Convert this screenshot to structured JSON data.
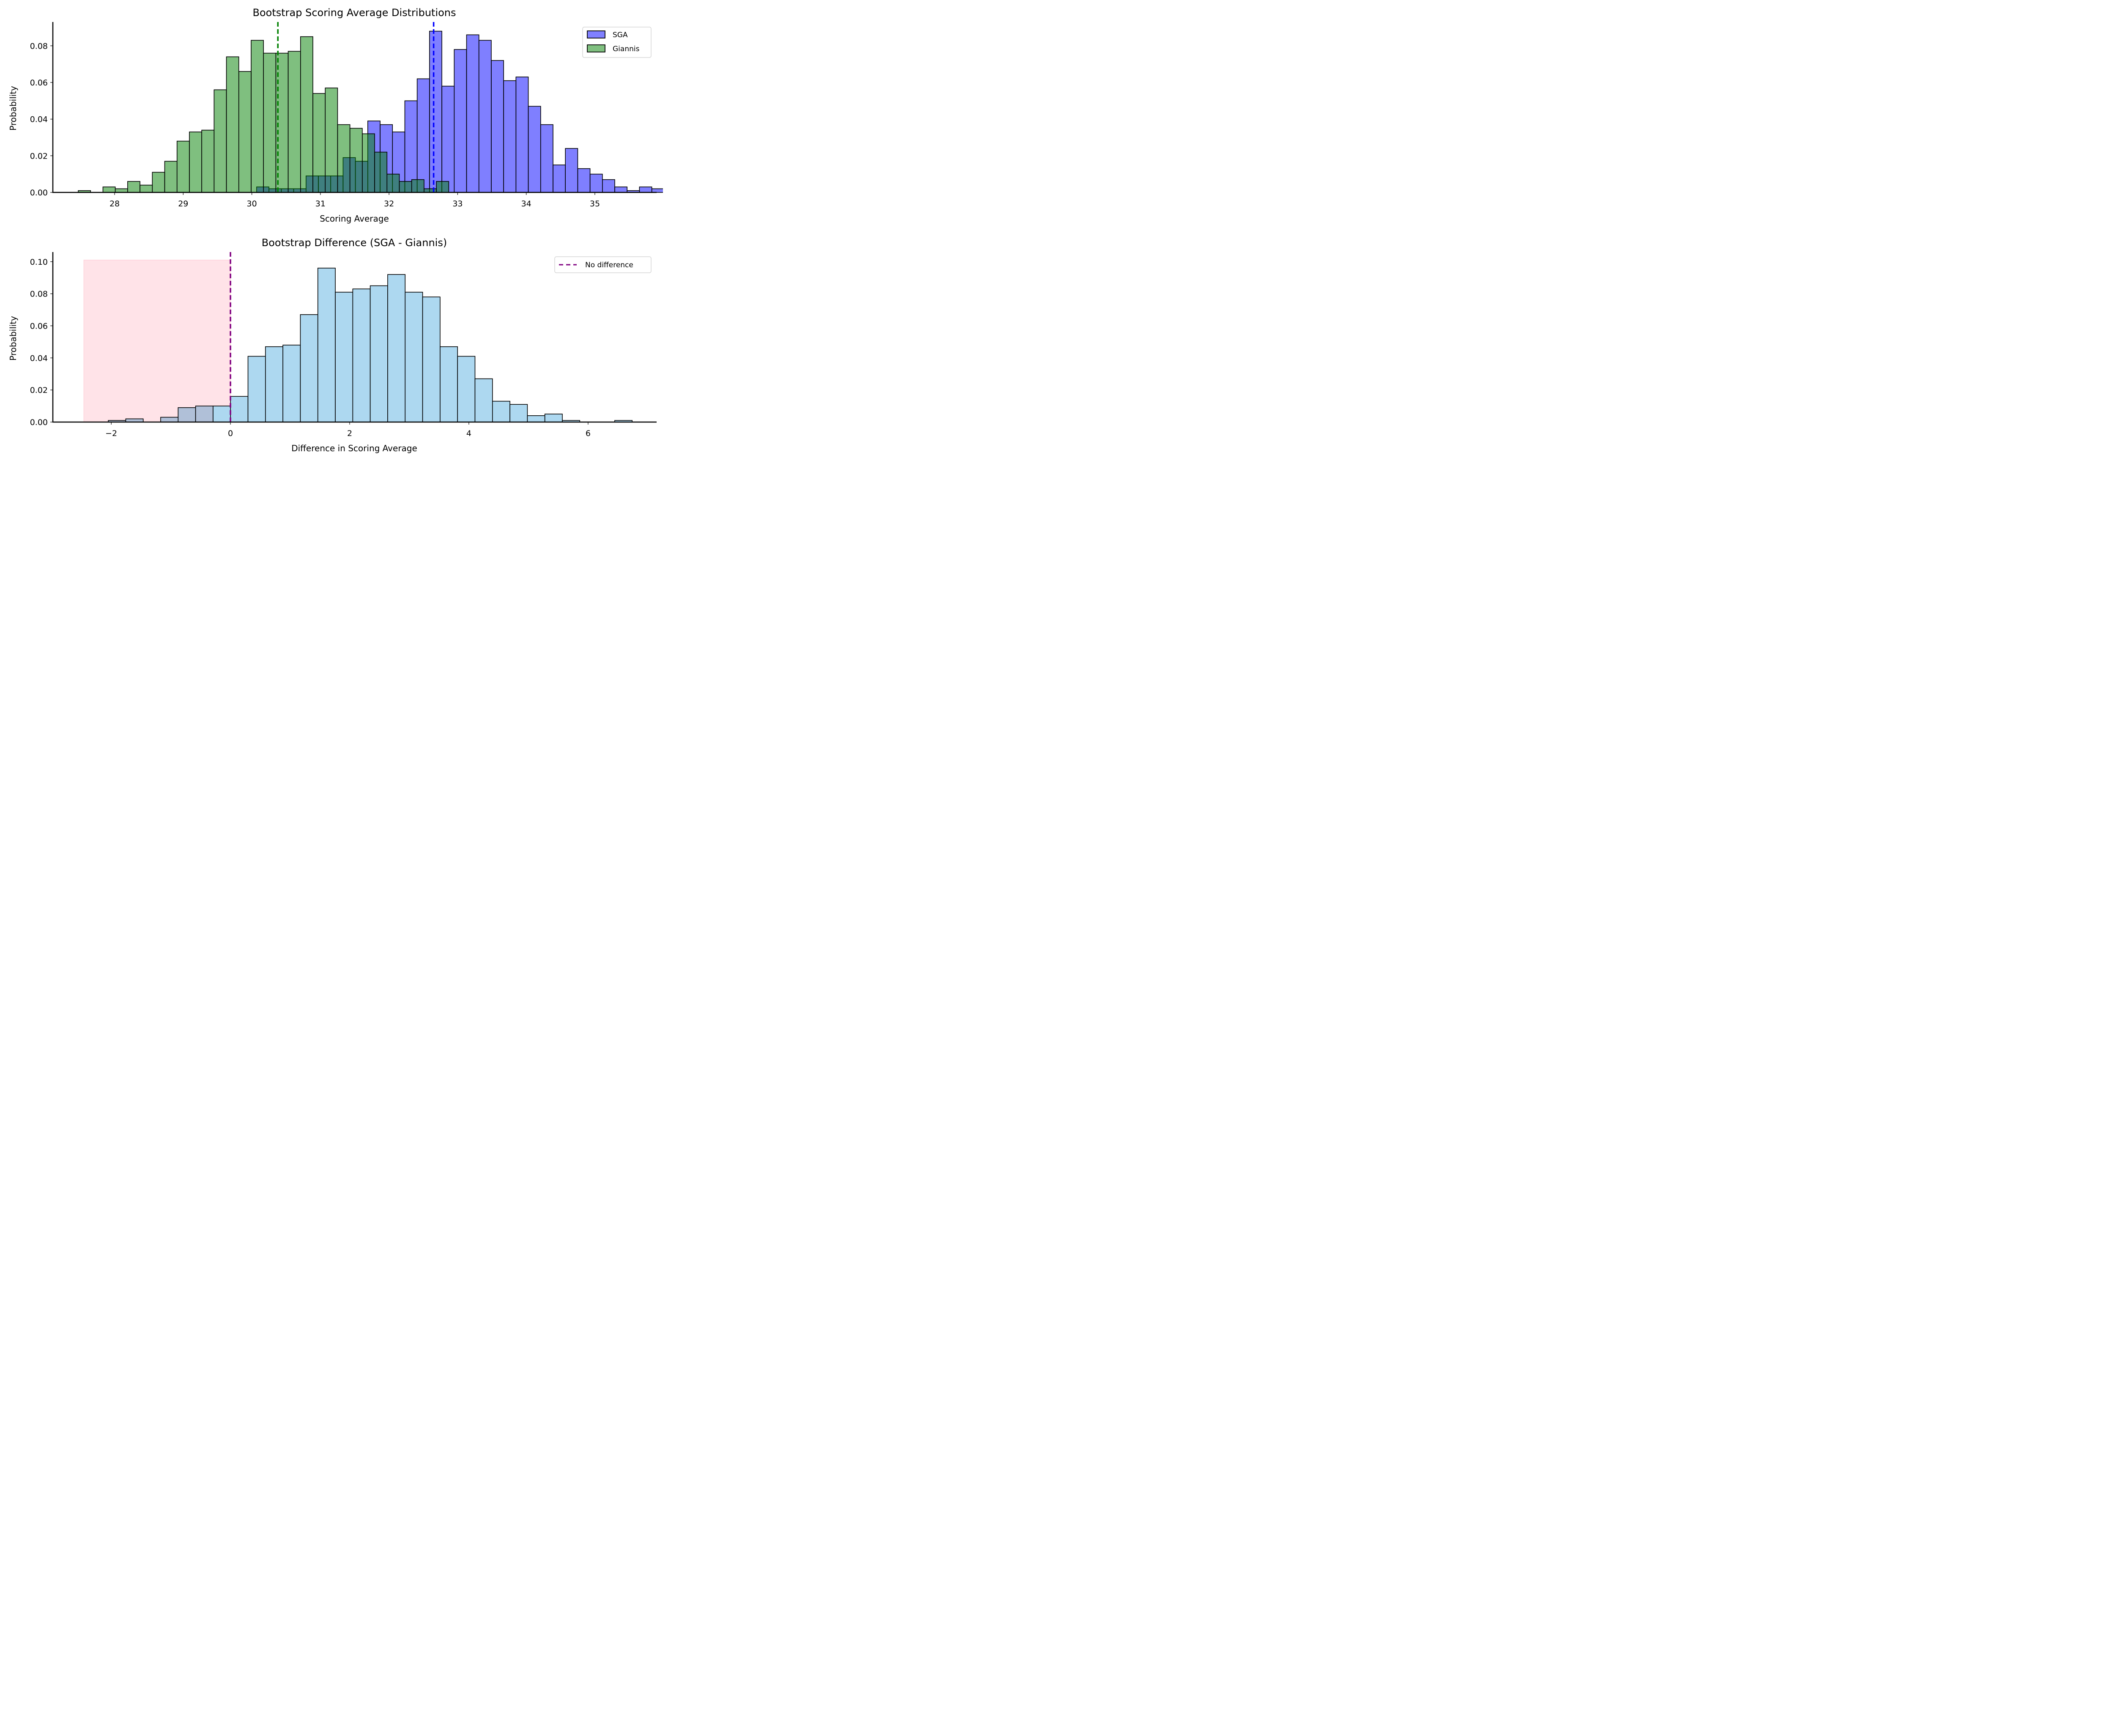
{
  "chart_data": [
    {
      "type": "bar",
      "subtype": "histogram",
      "title": "Bootstrap Scoring Average Distributions",
      "xlabel": "Scoring Average",
      "ylabel": "Probability",
      "xlim": [
        27.1,
        35.9
      ],
      "ylim": [
        0,
        0.093
      ],
      "xticks": [
        28,
        29,
        30,
        31,
        32,
        33,
        34,
        35
      ],
      "xtick_labels": [
        "28",
        "29",
        "30",
        "31",
        "32",
        "33",
        "34",
        "35"
      ],
      "yticks": [
        0.0,
        0.02,
        0.04,
        0.06,
        0.08
      ],
      "ytick_labels": [
        "0.00",
        "0.02",
        "0.04",
        "0.06",
        "0.08"
      ],
      "grid": false,
      "legend": {
        "placement": "top-right",
        "entries": [
          "SGA",
          "Giannis"
        ]
      },
      "series": [
        {
          "name": "SGA",
          "color": "#8080ff",
          "bin_start": 30.07,
          "bin_width": 0.18,
          "values": [
            0.003,
            0.002,
            0.002,
            0.002,
            0.009,
            0.009,
            0.009,
            0.019,
            0.017,
            0.039,
            0.037,
            0.033,
            0.05,
            0.062,
            0.088,
            0.058,
            0.078,
            0.086,
            0.083,
            0.072,
            0.061,
            0.063,
            0.047,
            0.037,
            0.015,
            0.024,
            0.013,
            0.01,
            0.007,
            0.003,
            0.001,
            0.003,
            0.002
          ],
          "mean": 32.65
        },
        {
          "name": "Giannis",
          "color": "#80c080",
          "bin_start": 27.47,
          "bin_width": 0.18,
          "values": [
            0.001,
            0.0,
            0.003,
            0.002,
            0.006,
            0.004,
            0.011,
            0.017,
            0.028,
            0.033,
            0.034,
            0.056,
            0.074,
            0.066,
            0.083,
            0.076,
            0.076,
            0.077,
            0.085,
            0.054,
            0.057,
            0.037,
            0.035,
            0.032,
            0.022,
            0.01,
            0.006,
            0.007,
            0.002,
            0.006
          ],
          "mean": 30.38
        }
      ],
      "mean_lines": [
        {
          "series": "Giannis",
          "x": 30.38,
          "color": "#008000",
          "style": "dashed"
        },
        {
          "series": "SGA",
          "x": 32.65,
          "color": "#0000ff",
          "style": "dashed"
        }
      ]
    },
    {
      "type": "bar",
      "subtype": "histogram",
      "title": "Bootstrap Difference (SGA - Giannis)",
      "xlabel": "Difference in Scoring Average",
      "ylabel": "Probability",
      "xlim": [
        -2.98,
        7.15
      ],
      "ylim": [
        0,
        0.106
      ],
      "xticks": [
        -2,
        0,
        2,
        4,
        6
      ],
      "xtick_labels": [
        "−2",
        "0",
        "2",
        "4",
        "6"
      ],
      "yticks": [
        0.0,
        0.02,
        0.04,
        0.06,
        0.08,
        0.1
      ],
      "ytick_labels": [
        "0.00",
        "0.02",
        "0.04",
        "0.06",
        "0.08",
        "0.10"
      ],
      "grid": false,
      "legend": {
        "placement": "top-right",
        "entries": [
          "No difference"
        ]
      },
      "series": [
        {
          "name": "Difference",
          "color": "#add8f0",
          "bin_start": -2.05,
          "bin_width": 0.293,
          "values": [
            0.001,
            0.002,
            0.0,
            0.003,
            0.009,
            0.01,
            0.01,
            0.016,
            0.041,
            0.047,
            0.048,
            0.067,
            0.096,
            0.081,
            0.083,
            0.085,
            0.092,
            0.081,
            0.078,
            0.047,
            0.041,
            0.027,
            0.013,
            0.011,
            0.004,
            0.005,
            0.001,
            0.0,
            0.0,
            0.001
          ]
        }
      ],
      "reference_line": {
        "label": "No difference",
        "x": 0,
        "color": "#800080",
        "style": "dashed"
      },
      "shaded_region": {
        "x_from": -2.46,
        "x_to": 0,
        "y_to": 0.101,
        "color": "#ffc0cb",
        "description": "negative difference region"
      }
    }
  ]
}
